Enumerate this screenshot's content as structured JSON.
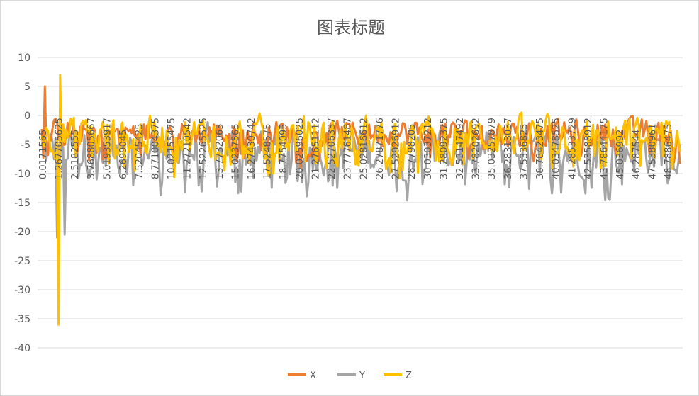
{
  "chart_data": {
    "type": "line",
    "title": "图表标题",
    "xlabel": "",
    "ylabel": "",
    "ylim": [
      -40,
      10
    ],
    "yticks": [
      10,
      5,
      0,
      -5,
      -10,
      -15,
      -20,
      -25,
      -30,
      -35,
      -40
    ],
    "x_tick_labels": [
      "0.0171565",
      "1.267705625",
      "2.5182555",
      "3.768805667",
      "5.019353917",
      "6.2699045",
      "7.52045425",
      "8.771004375",
      "10.02155475",
      "11.27210542",
      "12.52265525",
      "13.7732063",
      "15.0237565",
      "16.27430742",
      "17.5248575",
      "18.7754095",
      "20.02596025",
      "21.27651112",
      "22.52706337",
      "23.77761487",
      "25.02816612",
      "26.27871776",
      "27.52926912",
      "28.7798205",
      "30.03037212",
      "31.28092375",
      "32.53147492",
      "33.78202692",
      "35.03257879",
      "36.28313037",
      "37.5336825",
      "38.78423475",
      "40.03478525",
      "41.28533729",
      "42.53588912",
      "43.78644175",
      "45.036992",
      "46.287544",
      "47.5380961",
      "48.7886475"
    ],
    "grid": "horizontal",
    "legend_position": "bottom",
    "series": [
      {
        "name": "X",
        "color": "#ED7D31"
      },
      {
        "name": "Y",
        "color": "#A5A5A5"
      },
      {
        "name": "Z",
        "color": "#FFC000"
      }
    ]
  }
}
